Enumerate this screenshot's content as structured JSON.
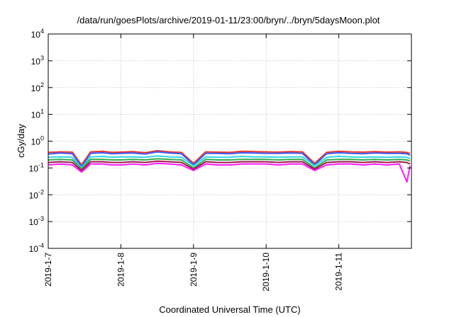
{
  "chart_data": {
    "type": "line",
    "title": "/data/run/goesPlots/archive/2019-01-11/23:00/bryn/../bryn/5daysMoon.plot",
    "xlabel": "Coordinated Universal Time (UTC)",
    "ylabel": "cGy/day",
    "x_scale": "time",
    "y_scale": "log",
    "xlim": [
      "2019-01-07T00:00",
      "2019-01-12T00:00"
    ],
    "ylim": [
      0.0001,
      10000
    ],
    "grid": true,
    "legend": "none",
    "x_ticks": [
      {
        "date": "2019-01-07",
        "label": "2019-1-7"
      },
      {
        "date": "2019-01-08",
        "label": "2019-1-8"
      },
      {
        "date": "2019-01-09",
        "label": "2019-1-9"
      },
      {
        "date": "2019-01-10",
        "label": "2019-1-10"
      },
      {
        "date": "2019-01-11",
        "label": "2019-1-11"
      }
    ],
    "y_ticks": [
      {
        "value": 0.0001,
        "base": "10",
        "exp": "-4"
      },
      {
        "value": 0.001,
        "base": "10",
        "exp": "-3"
      },
      {
        "value": 0.01,
        "base": "10",
        "exp": "-2"
      },
      {
        "value": 0.1,
        "base": "10",
        "exp": "-1"
      },
      {
        "value": 1,
        "base": "10",
        "exp": "0"
      },
      {
        "value": 10,
        "base": "10",
        "exp": "1"
      },
      {
        "value": 100,
        "base": "10",
        "exp": "2"
      },
      {
        "value": 1000,
        "base": "10",
        "exp": "3"
      },
      {
        "value": 10000,
        "base": "10",
        "exp": "4"
      }
    ],
    "x": [
      "2019-01-07T00:00",
      "2019-01-07T04:00",
      "2019-01-07T08:00",
      "2019-01-07T11:00",
      "2019-01-07T14:00",
      "2019-01-07T18:00",
      "2019-01-07T21:00",
      "2019-01-08T00:00",
      "2019-01-08T04:00",
      "2019-01-08T08:00",
      "2019-01-08T12:00",
      "2019-01-08T16:00",
      "2019-01-08T20:00",
      "2019-01-09T00:00",
      "2019-01-09T04:00",
      "2019-01-09T08:00",
      "2019-01-09T12:00",
      "2019-01-09T16:00",
      "2019-01-09T20:00",
      "2019-01-10T00:00",
      "2019-01-10T04:00",
      "2019-01-10T08:00",
      "2019-01-10T12:00",
      "2019-01-10T16:00",
      "2019-01-10T20:00",
      "2019-01-11T00:00",
      "2019-01-11T04:00",
      "2019-01-11T08:00",
      "2019-01-11T12:00",
      "2019-01-11T16:00",
      "2019-01-11T20:00",
      "2019-01-11T22:30",
      "2019-01-11T23:30"
    ],
    "series": [
      {
        "color": "#e8362c",
        "values": [
          0.38,
          0.4,
          0.39,
          0.13,
          0.4,
          0.42,
          0.38,
          0.39,
          0.41,
          0.37,
          0.44,
          0.4,
          0.38,
          0.15,
          0.4,
          0.39,
          0.38,
          0.42,
          0.41,
          0.4,
          0.39,
          0.41,
          0.4,
          0.15,
          0.38,
          0.42,
          0.4,
          0.39,
          0.41,
          0.39,
          0.4,
          0.38,
          0.35
        ]
      },
      {
        "color": "#3b5bff",
        "values": [
          0.33,
          0.36,
          0.34,
          0.11,
          0.35,
          0.37,
          0.34,
          0.35,
          0.36,
          0.33,
          0.4,
          0.36,
          0.34,
          0.13,
          0.35,
          0.35,
          0.34,
          0.37,
          0.36,
          0.35,
          0.35,
          0.36,
          0.35,
          0.13,
          0.34,
          0.37,
          0.35,
          0.34,
          0.36,
          0.35,
          0.35,
          0.34,
          0.3
        ]
      },
      {
        "color": "#2fd6e0",
        "values": [
          0.25,
          0.26,
          0.25,
          0.1,
          0.26,
          0.27,
          0.25,
          0.26,
          0.26,
          0.25,
          0.28,
          0.26,
          0.25,
          0.12,
          0.26,
          0.25,
          0.25,
          0.27,
          0.26,
          0.26,
          0.25,
          0.26,
          0.26,
          0.12,
          0.25,
          0.27,
          0.26,
          0.25,
          0.26,
          0.25,
          0.26,
          0.25,
          0.22
        ]
      },
      {
        "color": "#2faa4c",
        "values": [
          0.2,
          0.21,
          0.2,
          0.09,
          0.21,
          0.21,
          0.2,
          0.2,
          0.21,
          0.2,
          0.22,
          0.21,
          0.2,
          0.1,
          0.21,
          0.2,
          0.2,
          0.21,
          0.21,
          0.21,
          0.2,
          0.21,
          0.21,
          0.1,
          0.2,
          0.21,
          0.21,
          0.2,
          0.21,
          0.2,
          0.21,
          0.2,
          0.18
        ]
      },
      {
        "color": "#a0184a",
        "values": [
          0.16,
          0.17,
          0.16,
          0.08,
          0.17,
          0.17,
          0.16,
          0.16,
          0.17,
          0.16,
          0.18,
          0.17,
          0.16,
          0.09,
          0.17,
          0.16,
          0.16,
          0.17,
          0.17,
          0.17,
          0.16,
          0.17,
          0.17,
          0.09,
          0.16,
          0.17,
          0.17,
          0.16,
          0.17,
          0.16,
          0.17,
          0.16,
          0.14
        ]
      },
      {
        "color": "#ff1aff",
        "values": [
          0.13,
          0.14,
          0.13,
          0.07,
          0.14,
          0.14,
          0.13,
          0.13,
          0.14,
          0.13,
          0.15,
          0.14,
          0.13,
          0.08,
          0.14,
          0.13,
          0.13,
          0.14,
          0.14,
          0.14,
          0.13,
          0.14,
          0.14,
          0.08,
          0.13,
          0.14,
          0.14,
          0.13,
          0.14,
          0.13,
          0.14,
          0.03,
          0.12
        ]
      }
    ]
  }
}
